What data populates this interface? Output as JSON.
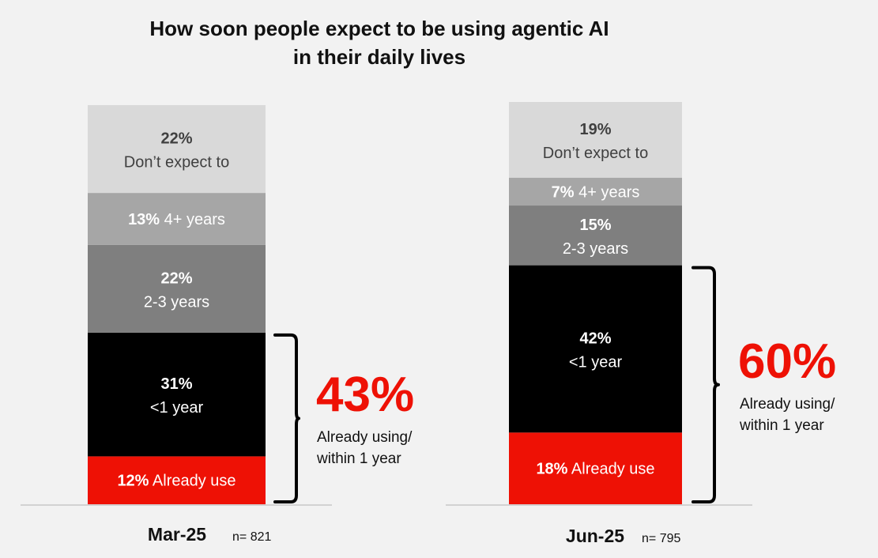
{
  "title": {
    "line1": "How soon people expect to be using agentic AI",
    "line2": "in their daily lives"
  },
  "chart_data": {
    "type": "bar",
    "stacked": true,
    "title": "How soon people expect to be using agentic AI in their daily lives",
    "ylim": [
      0,
      100
    ],
    "grid": false,
    "legend": "none",
    "categories": [
      "Mar-25",
      "Jun-25"
    ],
    "sample_sizes": [
      "n= 821",
      "n= 795"
    ],
    "series": [
      {
        "name": "Already use",
        "values": [
          12,
          18
        ],
        "color": "#ee1105",
        "text_color": "#ffffff"
      },
      {
        "name": "<1 year",
        "values": [
          31,
          42
        ],
        "color": "#000000",
        "text_color": "#ffffff"
      },
      {
        "name": "2-3 years",
        "values": [
          22,
          15
        ],
        "color": "#7f7f7f",
        "text_color": "#ffffff"
      },
      {
        "name": "4+ years",
        "values": [
          13,
          7
        ],
        "color": "#a6a6a6",
        "text_color": "#ffffff"
      },
      {
        "name": "Don’t expect to",
        "values": [
          22,
          19
        ],
        "color": "#d9d9d9",
        "text_color": "#404040"
      }
    ],
    "segment_labels": [
      [
        {
          "pct": "12%",
          "text": "Already use",
          "layout": "inline"
        },
        {
          "pct": "31%",
          "text": "<1 year",
          "layout": "stacked"
        },
        {
          "pct": "22%",
          "text": "2-3 years",
          "layout": "stacked"
        },
        {
          "pct": "13%",
          "text": "4+ years",
          "layout": "inline"
        },
        {
          "pct": "22%",
          "text": "Don’t expect to",
          "layout": "stacked"
        }
      ],
      [
        {
          "pct": "18%",
          "text": "Already use",
          "layout": "inline"
        },
        {
          "pct": "42%",
          "text": "<1 year",
          "layout": "stacked"
        },
        {
          "pct": "15%",
          "text": "2-3 years",
          "layout": "stacked"
        },
        {
          "pct": "7%",
          "text": "4+ years",
          "layout": "inline"
        },
        {
          "pct": "19%",
          "text": "Don’t expect to",
          "layout": "stacked"
        }
      ]
    ],
    "annotations": [
      {
        "value": "43%",
        "line1": "Already using/",
        "line2": "within 1 year",
        "color": "#ee1105"
      },
      {
        "value": "60%",
        "line1": "Already using/",
        "line2": "within 1 year",
        "color": "#ee1105"
      }
    ]
  }
}
